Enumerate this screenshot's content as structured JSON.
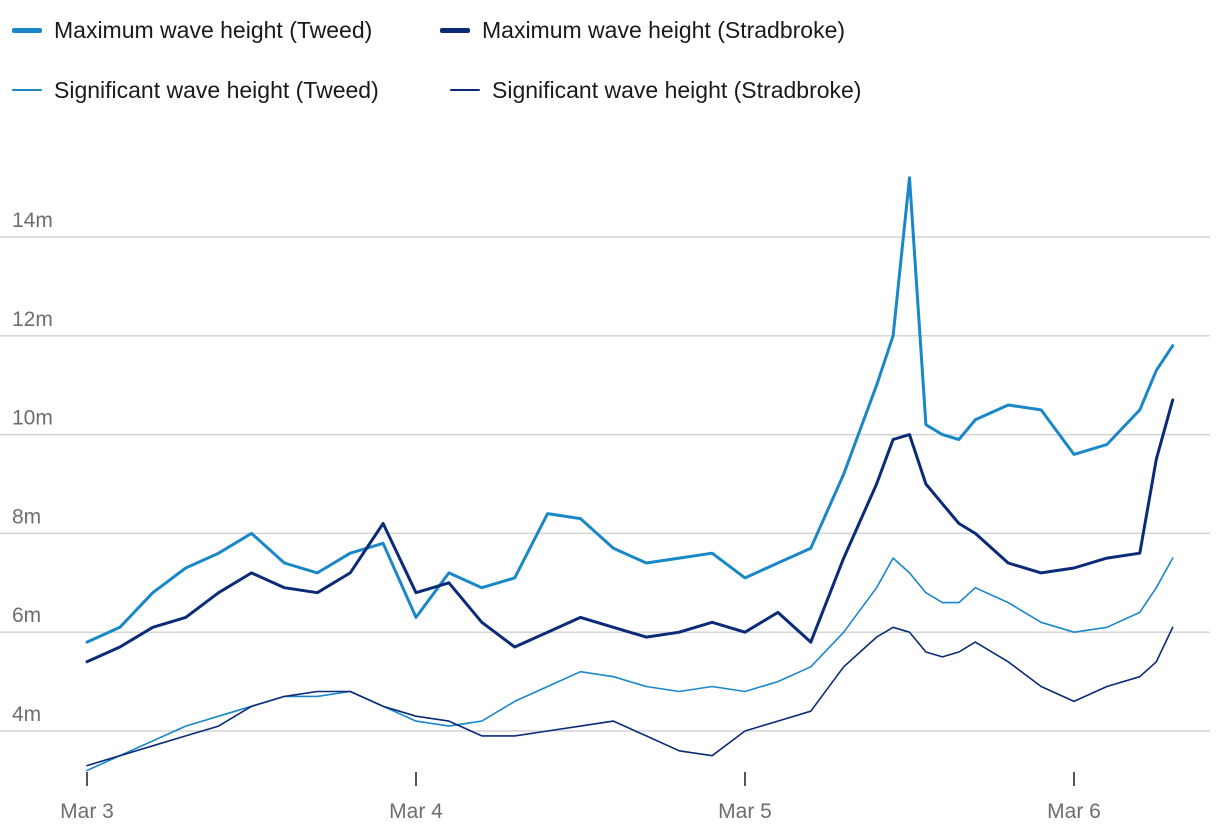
{
  "legend": {
    "items": [
      {
        "label": "Maximum wave height (Tweed)",
        "color": "#1a87c9",
        "weight": "thick"
      },
      {
        "label": "Maximum wave height (Stradbroke)",
        "color": "#0b2b78",
        "weight": "thick"
      },
      {
        "label": "Significant wave height (Tweed)",
        "color": "#1a87c9",
        "weight": "thin"
      },
      {
        "label": "Significant wave height (Stradbroke)",
        "color": "#0b2b78",
        "weight": "thin"
      }
    ]
  },
  "chart_data": {
    "type": "line",
    "title": "",
    "xlabel": "",
    "ylabel": "",
    "x_unit": "days since Mar 3 00:00",
    "xlim": [
      0,
      3.55
    ],
    "ylim": [
      2.8,
      16
    ],
    "y_ticks": [
      4,
      6,
      8,
      10,
      12,
      14
    ],
    "y_tick_labels": [
      "4m",
      "6m",
      "8m",
      "10m",
      "12m",
      "14m"
    ],
    "x_ticks": [
      0,
      1,
      2,
      3
    ],
    "x_tick_labels": [
      "Mar 3",
      "Mar 4",
      "Mar 5",
      "Mar 6"
    ],
    "grid": "horizontal",
    "legend_position": "top-left",
    "series": [
      {
        "name": "Maximum wave height (Tweed)",
        "color": "#1a87c9",
        "width": 3,
        "x": [
          0.0,
          0.1,
          0.2,
          0.3,
          0.4,
          0.5,
          0.6,
          0.7,
          0.8,
          0.9,
          1.0,
          1.1,
          1.2,
          1.3,
          1.4,
          1.5,
          1.6,
          1.7,
          1.8,
          1.9,
          2.0,
          2.1,
          2.2,
          2.3,
          2.4,
          2.45,
          2.5,
          2.55,
          2.6,
          2.65,
          2.7,
          2.8,
          2.9,
          3.0,
          3.1,
          3.2,
          3.25,
          3.3
        ],
        "values": [
          5.8,
          6.1,
          6.8,
          7.3,
          7.6,
          8.0,
          7.4,
          7.2,
          7.6,
          7.8,
          6.3,
          7.2,
          6.9,
          7.1,
          8.4,
          8.3,
          7.7,
          7.4,
          7.5,
          7.6,
          7.1,
          7.4,
          7.7,
          9.2,
          11.0,
          12.0,
          15.2,
          10.2,
          10.0,
          9.9,
          10.3,
          10.6,
          10.5,
          9.6,
          9.8,
          10.5,
          11.3,
          11.8
        ]
      },
      {
        "name": "Maximum wave height (Stradbroke)",
        "color": "#0b2b78",
        "width": 3,
        "x": [
          0.0,
          0.1,
          0.2,
          0.3,
          0.4,
          0.5,
          0.6,
          0.7,
          0.8,
          0.9,
          1.0,
          1.1,
          1.2,
          1.3,
          1.4,
          1.5,
          1.6,
          1.7,
          1.8,
          1.9,
          2.0,
          2.1,
          2.2,
          2.3,
          2.4,
          2.45,
          2.5,
          2.55,
          2.6,
          2.65,
          2.7,
          2.8,
          2.9,
          3.0,
          3.1,
          3.2,
          3.25,
          3.3
        ],
        "values": [
          5.4,
          5.7,
          6.1,
          6.3,
          6.8,
          7.2,
          6.9,
          6.8,
          7.2,
          8.2,
          6.8,
          7.0,
          6.2,
          5.7,
          6.0,
          6.3,
          6.1,
          5.9,
          6.0,
          6.2,
          6.0,
          6.4,
          5.8,
          7.5,
          9.0,
          9.9,
          10.0,
          9.0,
          8.6,
          8.2,
          8.0,
          7.4,
          7.2,
          7.3,
          7.5,
          7.6,
          9.5,
          10.7
        ]
      },
      {
        "name": "Significant wave height (Tweed)",
        "color": "#1a87c9",
        "width": 1.6,
        "x": [
          0.0,
          0.1,
          0.2,
          0.3,
          0.4,
          0.5,
          0.6,
          0.7,
          0.8,
          0.9,
          1.0,
          1.1,
          1.2,
          1.3,
          1.4,
          1.5,
          1.6,
          1.7,
          1.8,
          1.9,
          2.0,
          2.1,
          2.2,
          2.3,
          2.4,
          2.45,
          2.5,
          2.55,
          2.6,
          2.65,
          2.7,
          2.8,
          2.9,
          3.0,
          3.1,
          3.2,
          3.25,
          3.3
        ],
        "values": [
          3.2,
          3.5,
          3.8,
          4.1,
          4.3,
          4.5,
          4.7,
          4.7,
          4.8,
          4.5,
          4.2,
          4.1,
          4.2,
          4.6,
          4.9,
          5.2,
          5.1,
          4.9,
          4.8,
          4.9,
          4.8,
          5.0,
          5.3,
          6.0,
          6.9,
          7.5,
          7.2,
          6.8,
          6.6,
          6.6,
          6.9,
          6.6,
          6.2,
          6.0,
          6.1,
          6.4,
          6.9,
          7.5
        ]
      },
      {
        "name": "Significant wave height (Stradbroke)",
        "color": "#0b2b78",
        "width": 1.6,
        "x": [
          0.0,
          0.1,
          0.2,
          0.3,
          0.4,
          0.5,
          0.6,
          0.7,
          0.8,
          0.9,
          1.0,
          1.1,
          1.2,
          1.3,
          1.4,
          1.5,
          1.6,
          1.7,
          1.8,
          1.9,
          2.0,
          2.1,
          2.2,
          2.3,
          2.4,
          2.45,
          2.5,
          2.55,
          2.6,
          2.65,
          2.7,
          2.8,
          2.9,
          3.0,
          3.1,
          3.2,
          3.25,
          3.3
        ],
        "values": [
          3.3,
          3.5,
          3.7,
          3.9,
          4.1,
          4.5,
          4.7,
          4.8,
          4.8,
          4.5,
          4.3,
          4.2,
          3.9,
          3.9,
          4.0,
          4.1,
          4.2,
          3.9,
          3.6,
          3.5,
          4.0,
          4.2,
          4.4,
          5.3,
          5.9,
          6.1,
          6.0,
          5.6,
          5.5,
          5.6,
          5.8,
          5.4,
          4.9,
          4.6,
          4.9,
          5.1,
          5.4,
          6.1
        ]
      }
    ]
  }
}
